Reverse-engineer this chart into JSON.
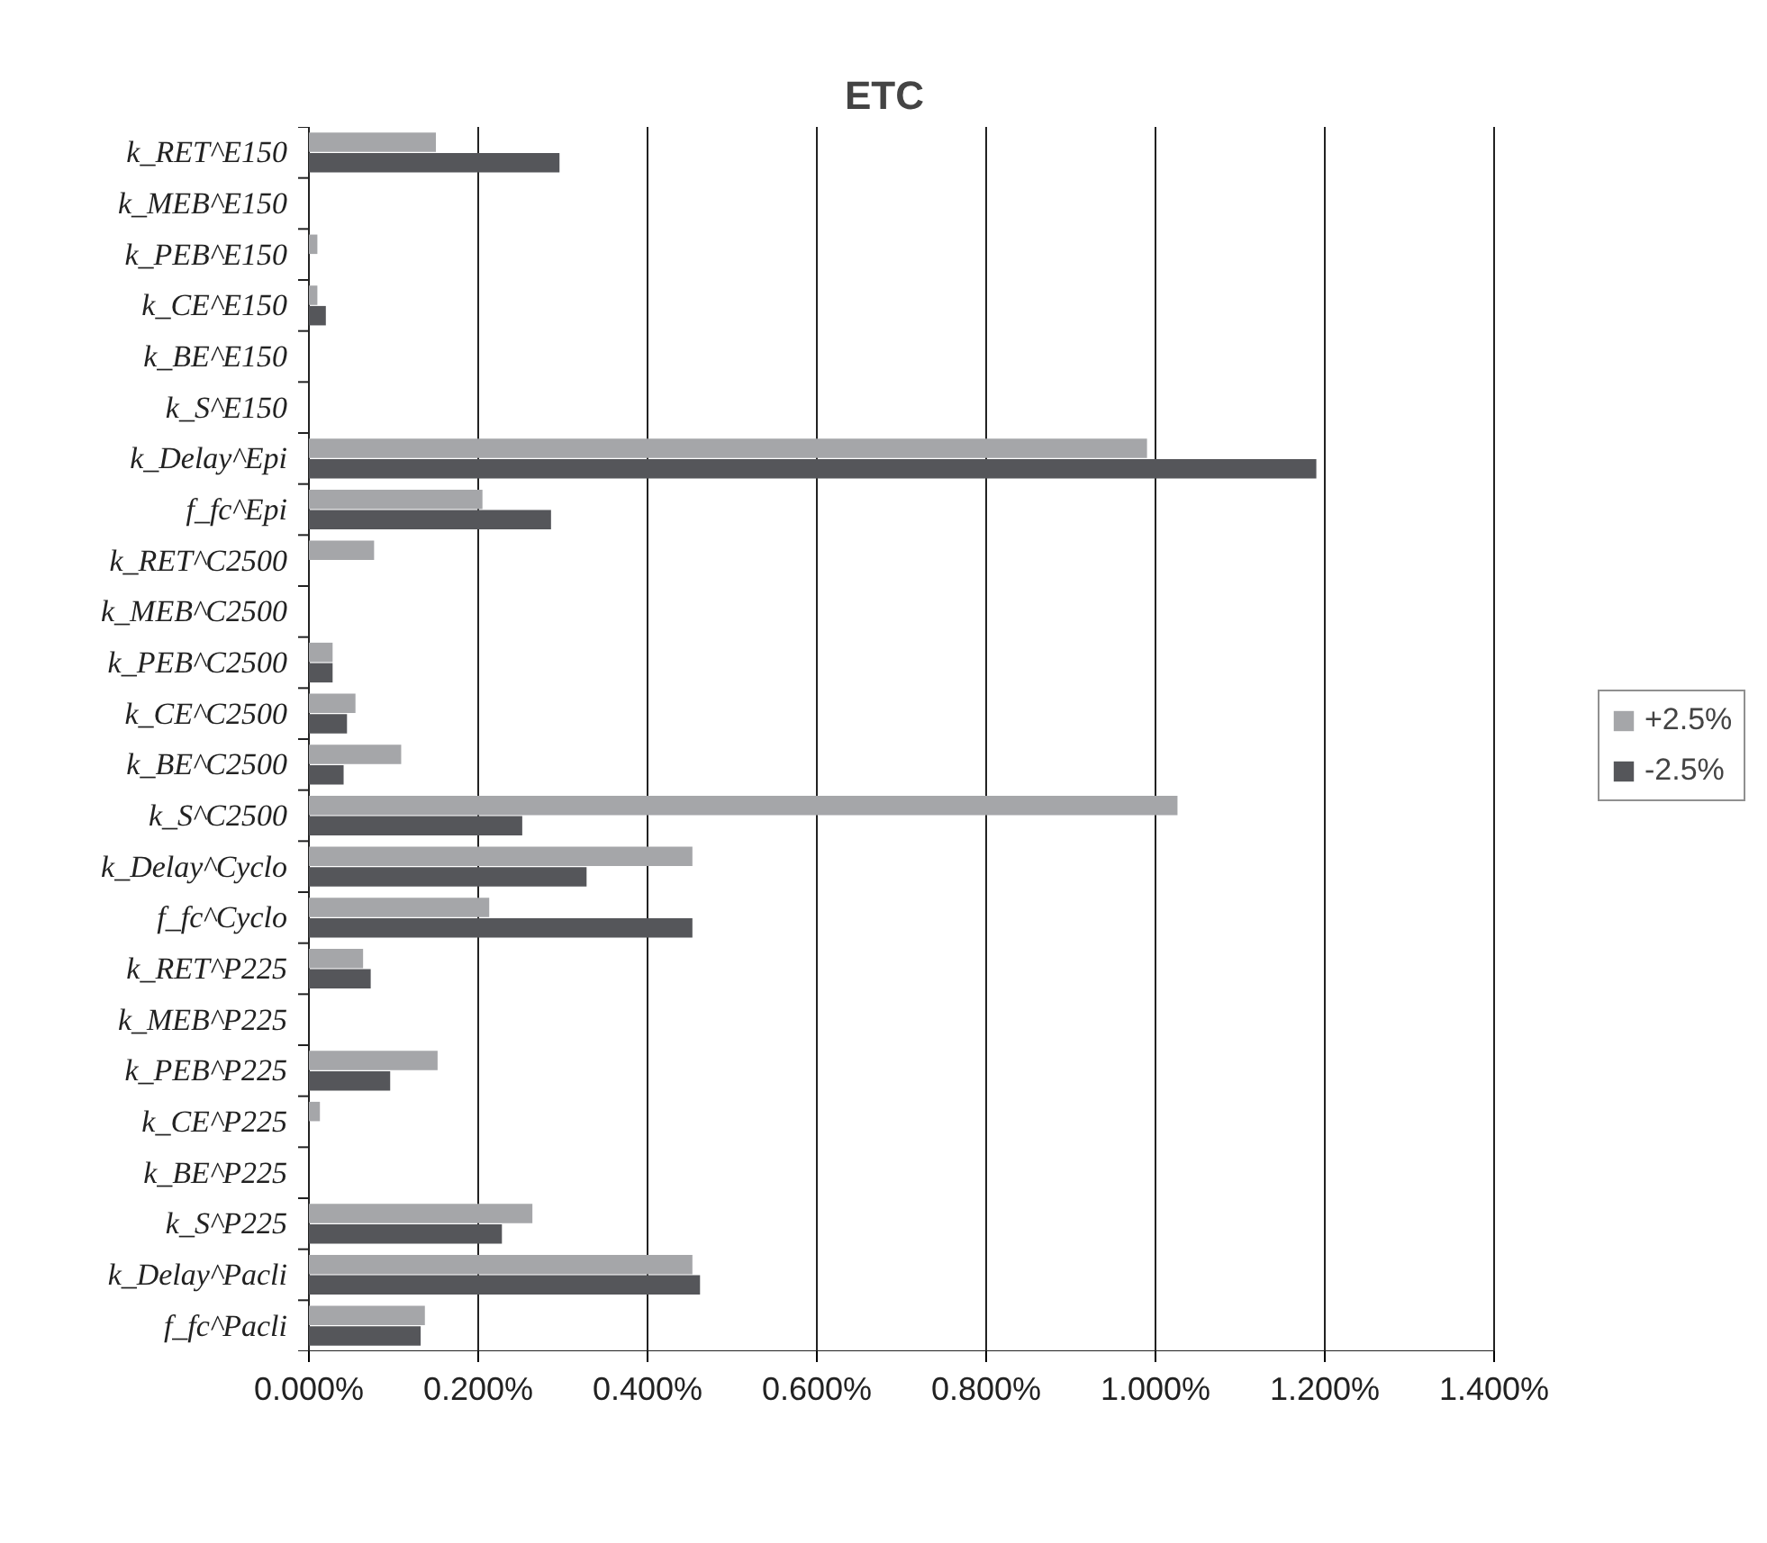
{
  "chart_data": {
    "type": "bar",
    "orientation": "horizontal",
    "title": "ETC",
    "categories": [
      "k_RET^E150",
      "k_MEB^E150",
      "k_PEB^E150",
      "k_CE^E150",
      "k_BE^E150",
      "k_S^E150",
      "k_Delay^Epi",
      "f_fc^Epi",
      "k_RET^C2500",
      "k_MEB^C2500",
      "k_PEB^C2500",
      "k_CE^C2500",
      "k_BE^C2500",
      "k_S^C2500",
      "k_Delay^Cyclo",
      "f_fc^Cyclo",
      "k_RET^P225",
      "k_MEB^P225",
      "k_PEB^P225",
      "k_CE^P225",
      "k_BE^P225",
      "k_S^P225",
      "k_Delay^Pacli",
      "f_fc^Pacli"
    ],
    "series": [
      {
        "name": "+2.5%",
        "color": "#a5a6a9",
        "values": [
          0.15,
          0,
          0.01,
          0.01,
          0,
          0,
          0.99,
          0.205,
          0.077,
          0,
          0.028,
          0.055,
          0.109,
          1.026,
          0.453,
          0.213,
          0.064,
          0,
          0.152,
          0.013,
          0,
          0.264,
          0.453,
          0.137
        ]
      },
      {
        "name": "-2.5%",
        "color": "#55565a",
        "values": [
          0.296,
          0,
          0,
          0.02,
          0,
          0,
          1.19,
          0.286,
          0,
          0,
          0.028,
          0.045,
          0.041,
          0.252,
          0.328,
          0.453,
          0.073,
          0,
          0.096,
          0,
          0,
          0.228,
          0.462,
          0.132
        ]
      }
    ],
    "xlim": [
      0,
      1.4
    ],
    "xticks": [
      {
        "value": 0,
        "label": "0.000%"
      },
      {
        "value": 0.2,
        "label": "0.200%"
      },
      {
        "value": 0.4,
        "label": "0.400%"
      },
      {
        "value": 0.6,
        "label": "0.600%"
      },
      {
        "value": 0.8,
        "label": "0.800%"
      },
      {
        "value": 1.0,
        "label": "1.000%"
      },
      {
        "value": 1.2,
        "label": "1.200%"
      },
      {
        "value": 1.4,
        "label": "1.400%"
      }
    ],
    "grid": "x",
    "legend": "right"
  }
}
